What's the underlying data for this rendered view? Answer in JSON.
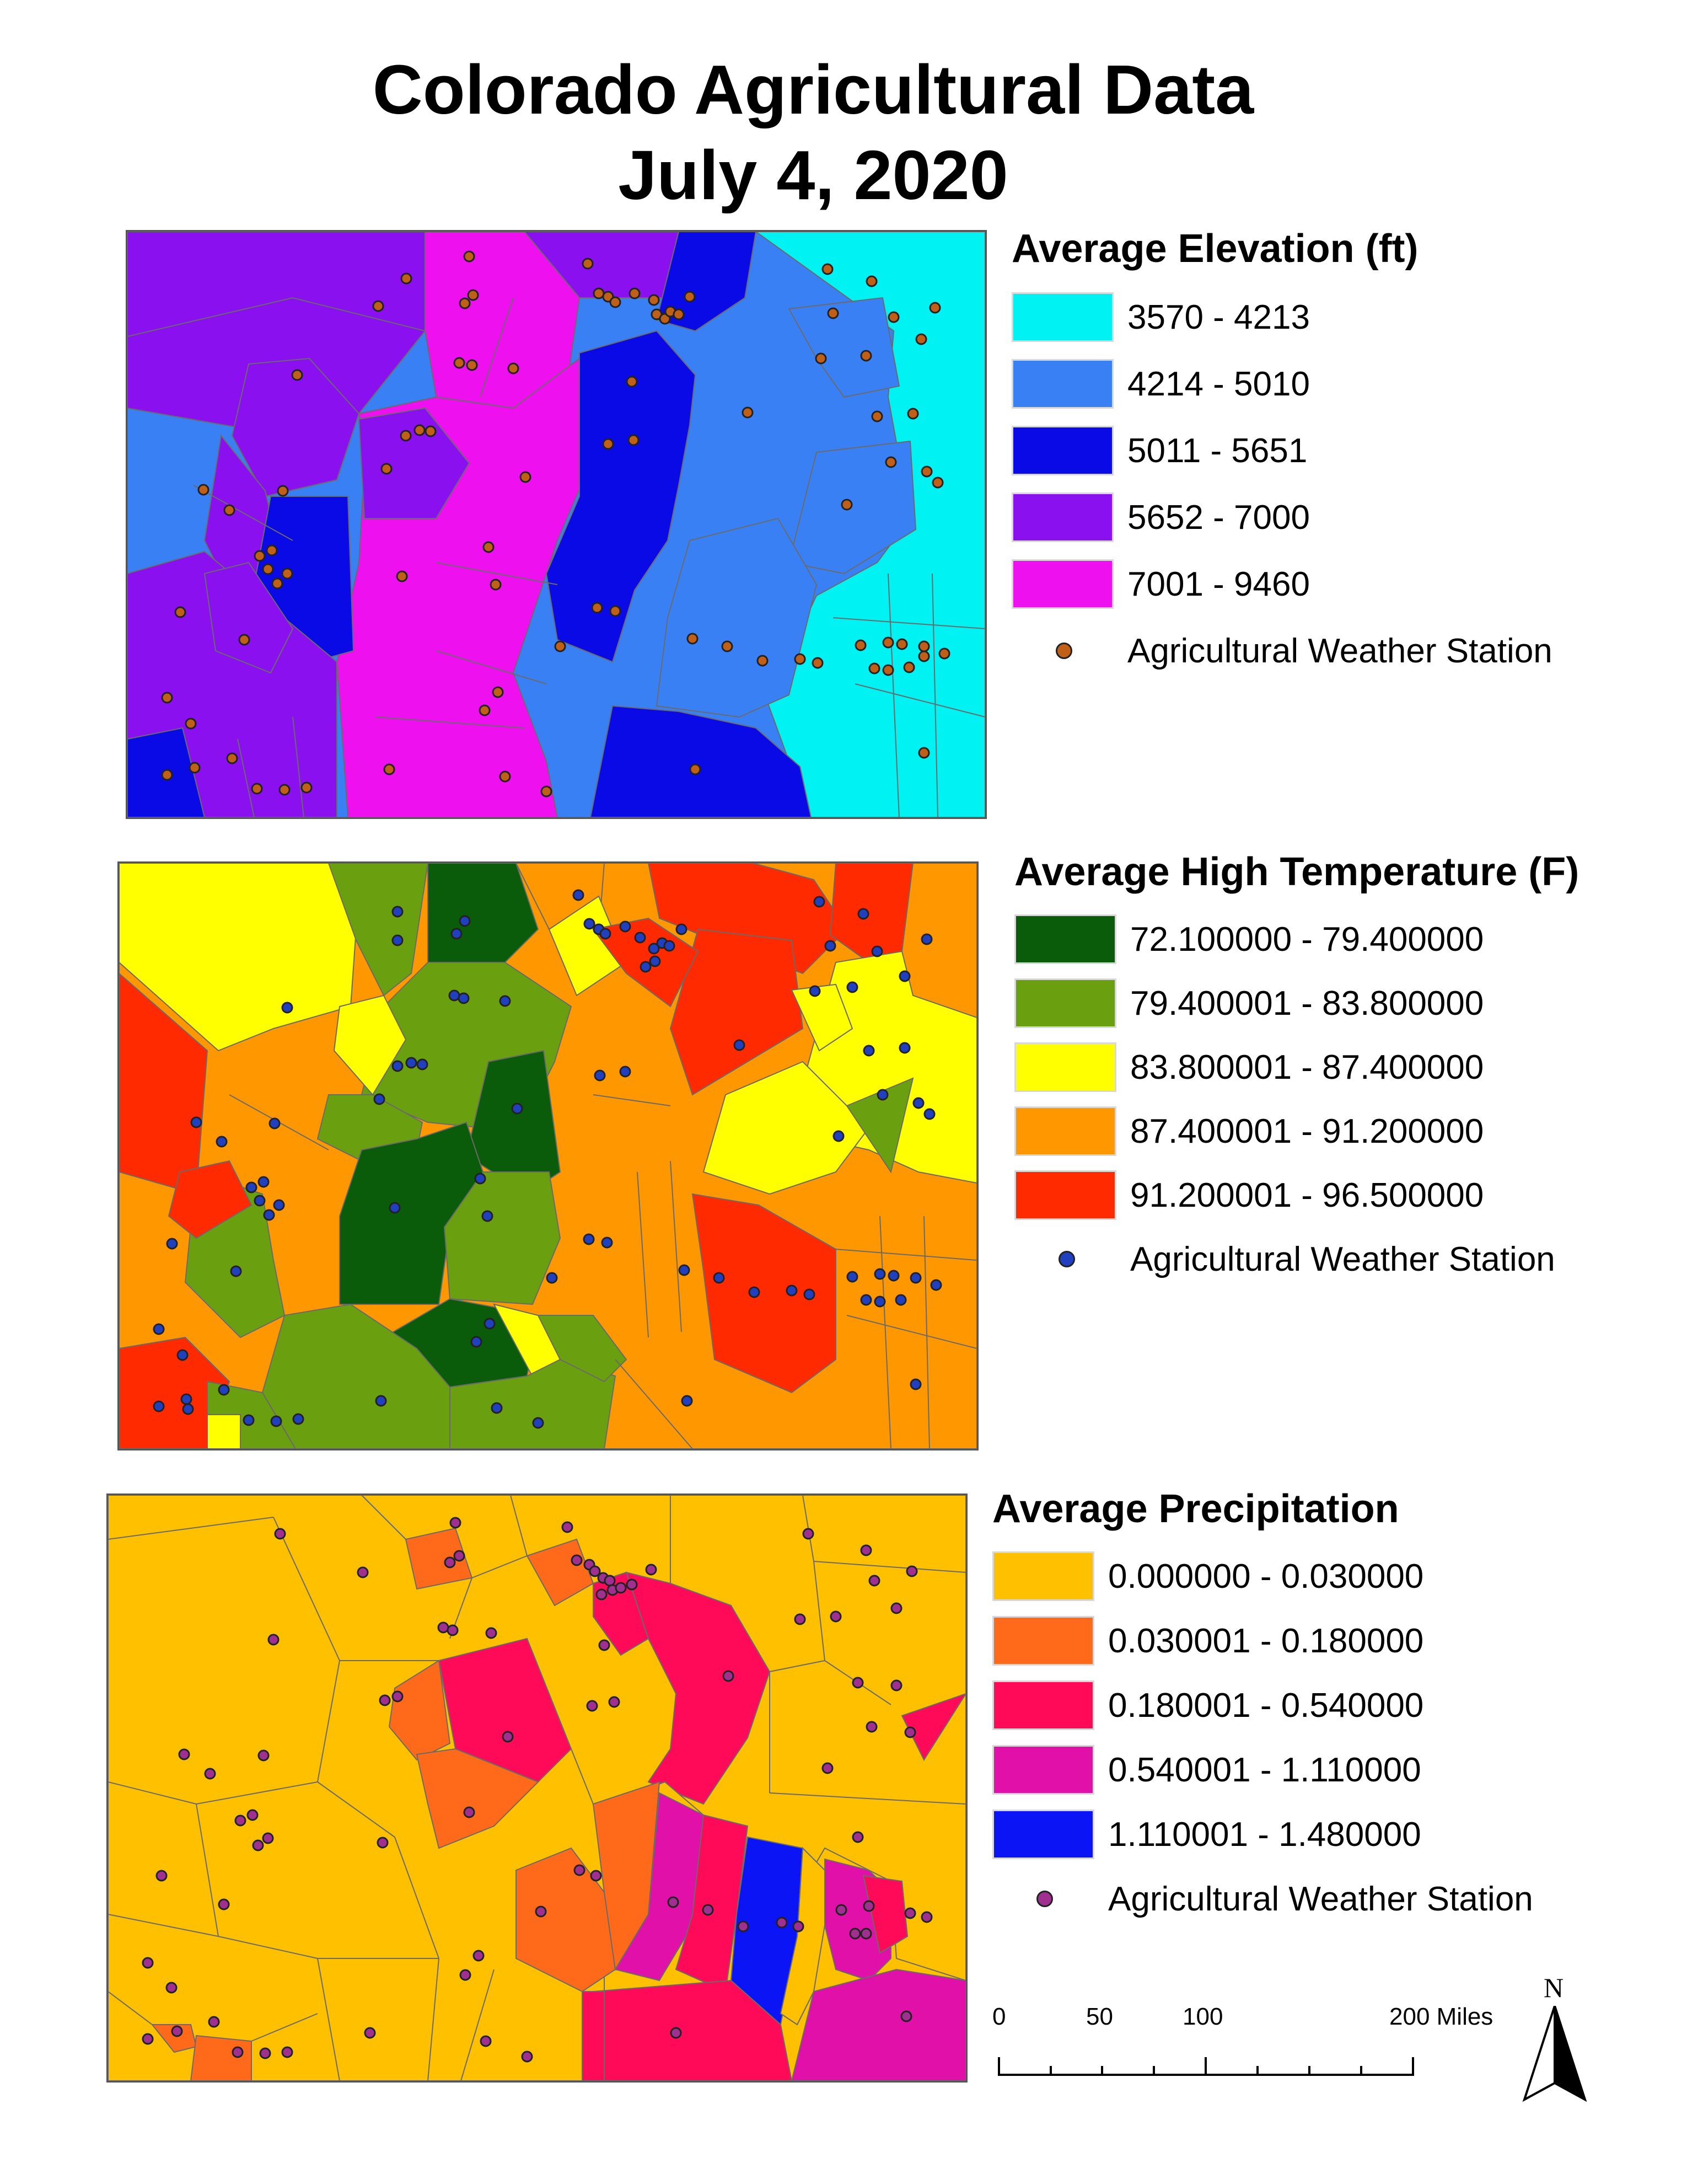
{
  "title_line1": "Colorado Agricultural Data",
  "title_line2": "July 4, 2020",
  "maps": [
    {
      "legend_title": "Average Elevation (ft)",
      "classes": [
        {
          "label": "3570 - 4213",
          "color": "#00f2f2"
        },
        {
          "label": "4214 - 5010",
          "color": "#3a80f5"
        },
        {
          "label": "5011 - 5651",
          "color": "#0a0ae6"
        },
        {
          "label": "5652 - 7000",
          "color": "#8b10f0"
        },
        {
          "label": "7001 - 9460",
          "color": "#ef10ef"
        }
      ],
      "station_label": "Agricultural Weather Station",
      "station_color": "#c06018"
    },
    {
      "legend_title": "Average High Temperature (F)",
      "classes": [
        {
          "label": "72.100000 - 79.400000",
          "color": "#0a5c0a"
        },
        {
          "label": "79.400001 - 83.800000",
          "color": "#6aa010"
        },
        {
          "label": "83.800001 - 87.400000",
          "color": "#ffff00"
        },
        {
          "label": "87.400001 - 91.200000",
          "color": "#ff9800"
        },
        {
          "label": "91.200001 - 96.500000",
          "color": "#ff2a00"
        }
      ],
      "station_label": "Agricultural Weather Station",
      "station_color": "#2040c0"
    },
    {
      "legend_title": "Average Precipitation",
      "classes": [
        {
          "label": "0.000000 - 0.030000",
          "color": "#ffc000"
        },
        {
          "label": "0.030001 - 0.180000",
          "color": "#ff6a1a"
        },
        {
          "label": "0.180001 - 0.540000",
          "color": "#ff0a58"
        },
        {
          "label": "0.540001 - 1.110000",
          "color": "#e010a8"
        },
        {
          "label": "1.110001 - 1.480000",
          "color": "#0a14f5"
        }
      ],
      "station_label": "Agricultural Weather Station",
      "station_color": "#a03090"
    }
  ],
  "scale_bar": {
    "ticks": [
      "0",
      "50",
      "100",
      "200 Miles"
    ]
  },
  "north_label": "N"
}
